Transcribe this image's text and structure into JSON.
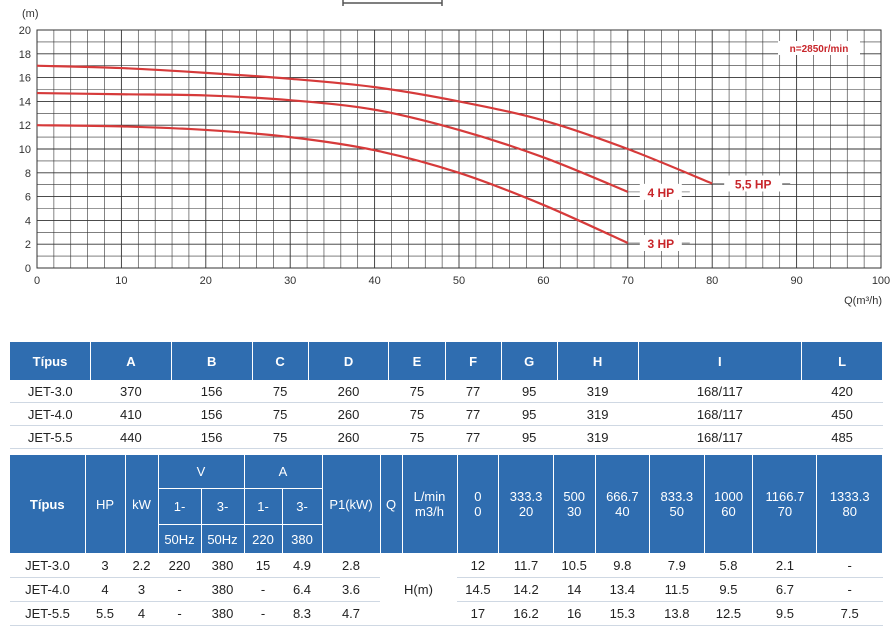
{
  "chart_data": {
    "type": "line",
    "ylabel": "(m)",
    "xlabel": "Q(m³/h)",
    "xlim": [
      0,
      100
    ],
    "ylim": [
      0,
      20
    ],
    "x_ticks": [
      0,
      10,
      20,
      30,
      40,
      50,
      60,
      70,
      80,
      90,
      100
    ],
    "y_ticks": [
      0,
      2,
      4,
      6,
      8,
      10,
      12,
      14,
      16,
      18,
      20
    ],
    "grid": true,
    "annotation": "n=2850r/min",
    "colors": {
      "curve": "#d63a3a",
      "grid": "#333333",
      "label": "#c8262b"
    },
    "series": [
      {
        "name": "5,5 HP",
        "x": [
          0,
          10,
          20,
          30,
          40,
          50,
          60,
          70,
          80
        ],
        "y": [
          17,
          16.8,
          16.4,
          15.9,
          15.2,
          14,
          12.4,
          10,
          7.1
        ]
      },
      {
        "name": "4 HP",
        "x": [
          0,
          10,
          20,
          30,
          40,
          50,
          60,
          70
        ],
        "y": [
          14.7,
          14.6,
          14.5,
          14.1,
          13.3,
          11.6,
          9.3,
          6.4
        ]
      },
      {
        "name": "3 HP",
        "x": [
          0,
          10,
          20,
          30,
          40,
          50,
          60,
          70
        ],
        "y": [
          12,
          11.9,
          11.6,
          11,
          9.9,
          8,
          5.3,
          2.1
        ]
      }
    ]
  },
  "dims_table": {
    "headers": [
      "Típus",
      "A",
      "B",
      "C",
      "D",
      "E",
      "F",
      "G",
      "H",
      "I",
      "L"
    ],
    "rows": [
      [
        "JET-3.0",
        "370",
        "156",
        "75",
        "260",
        "75",
        "77",
        "95",
        "319",
        "168/117",
        "420"
      ],
      [
        "JET-4.0",
        "410",
        "156",
        "75",
        "260",
        "75",
        "77",
        "95",
        "319",
        "168/117",
        "450"
      ],
      [
        "JET-5.5",
        "440",
        "156",
        "75",
        "260",
        "75",
        "77",
        "95",
        "319",
        "168/117",
        "485"
      ]
    ]
  },
  "perf_table": {
    "tipus": "Típus",
    "hp": "HP",
    "kw": "kW",
    "v": "V",
    "a": "A",
    "p1": "P1(kW)",
    "q": "Q",
    "unit_lmin": "L/min",
    "unit_m3h": "m3/h",
    "v_phases": [
      "1-",
      "3-"
    ],
    "v_freq": [
      "50Hz",
      "50Hz"
    ],
    "a_phases": [
      "1-",
      "3-"
    ],
    "a_volt": [
      "220",
      "380"
    ],
    "flow_lmin": [
      "0",
      "333.3",
      "500",
      "666.7",
      "833.3",
      "1000",
      "1166.7",
      "1333.3"
    ],
    "flow_m3h": [
      "0",
      "20",
      "30",
      "40",
      "50",
      "60",
      "70",
      "80"
    ],
    "h_label": "H(m)",
    "rows": [
      {
        "tipus": "JET-3.0",
        "hp": "3",
        "kw": "2.2",
        "v1": "220",
        "v3": "380",
        "a1": "15",
        "a3": "4.9",
        "p1": "2.8",
        "h": [
          "12",
          "11.7",
          "10.5",
          "9.8",
          "7.9",
          "5.8",
          "2.1",
          "-"
        ]
      },
      {
        "tipus": "JET-4.0",
        "hp": "4",
        "kw": "3",
        "v1": "-",
        "v3": "380",
        "a1": "-",
        "a3": "6.4",
        "p1": "3.6",
        "h": [
          "14.5",
          "14.2",
          "14",
          "13.4",
          "11.5",
          "9.5",
          "6.7",
          "-"
        ]
      },
      {
        "tipus": "JET-5.5",
        "hp": "5.5",
        "kw": "4",
        "v1": "-",
        "v3": "380",
        "a1": "-",
        "a3": "8.3",
        "p1": "4.7",
        "h": [
          "17",
          "16.2",
          "16",
          "15.3",
          "13.8",
          "12.5",
          "9.5",
          "7.5"
        ]
      }
    ]
  }
}
